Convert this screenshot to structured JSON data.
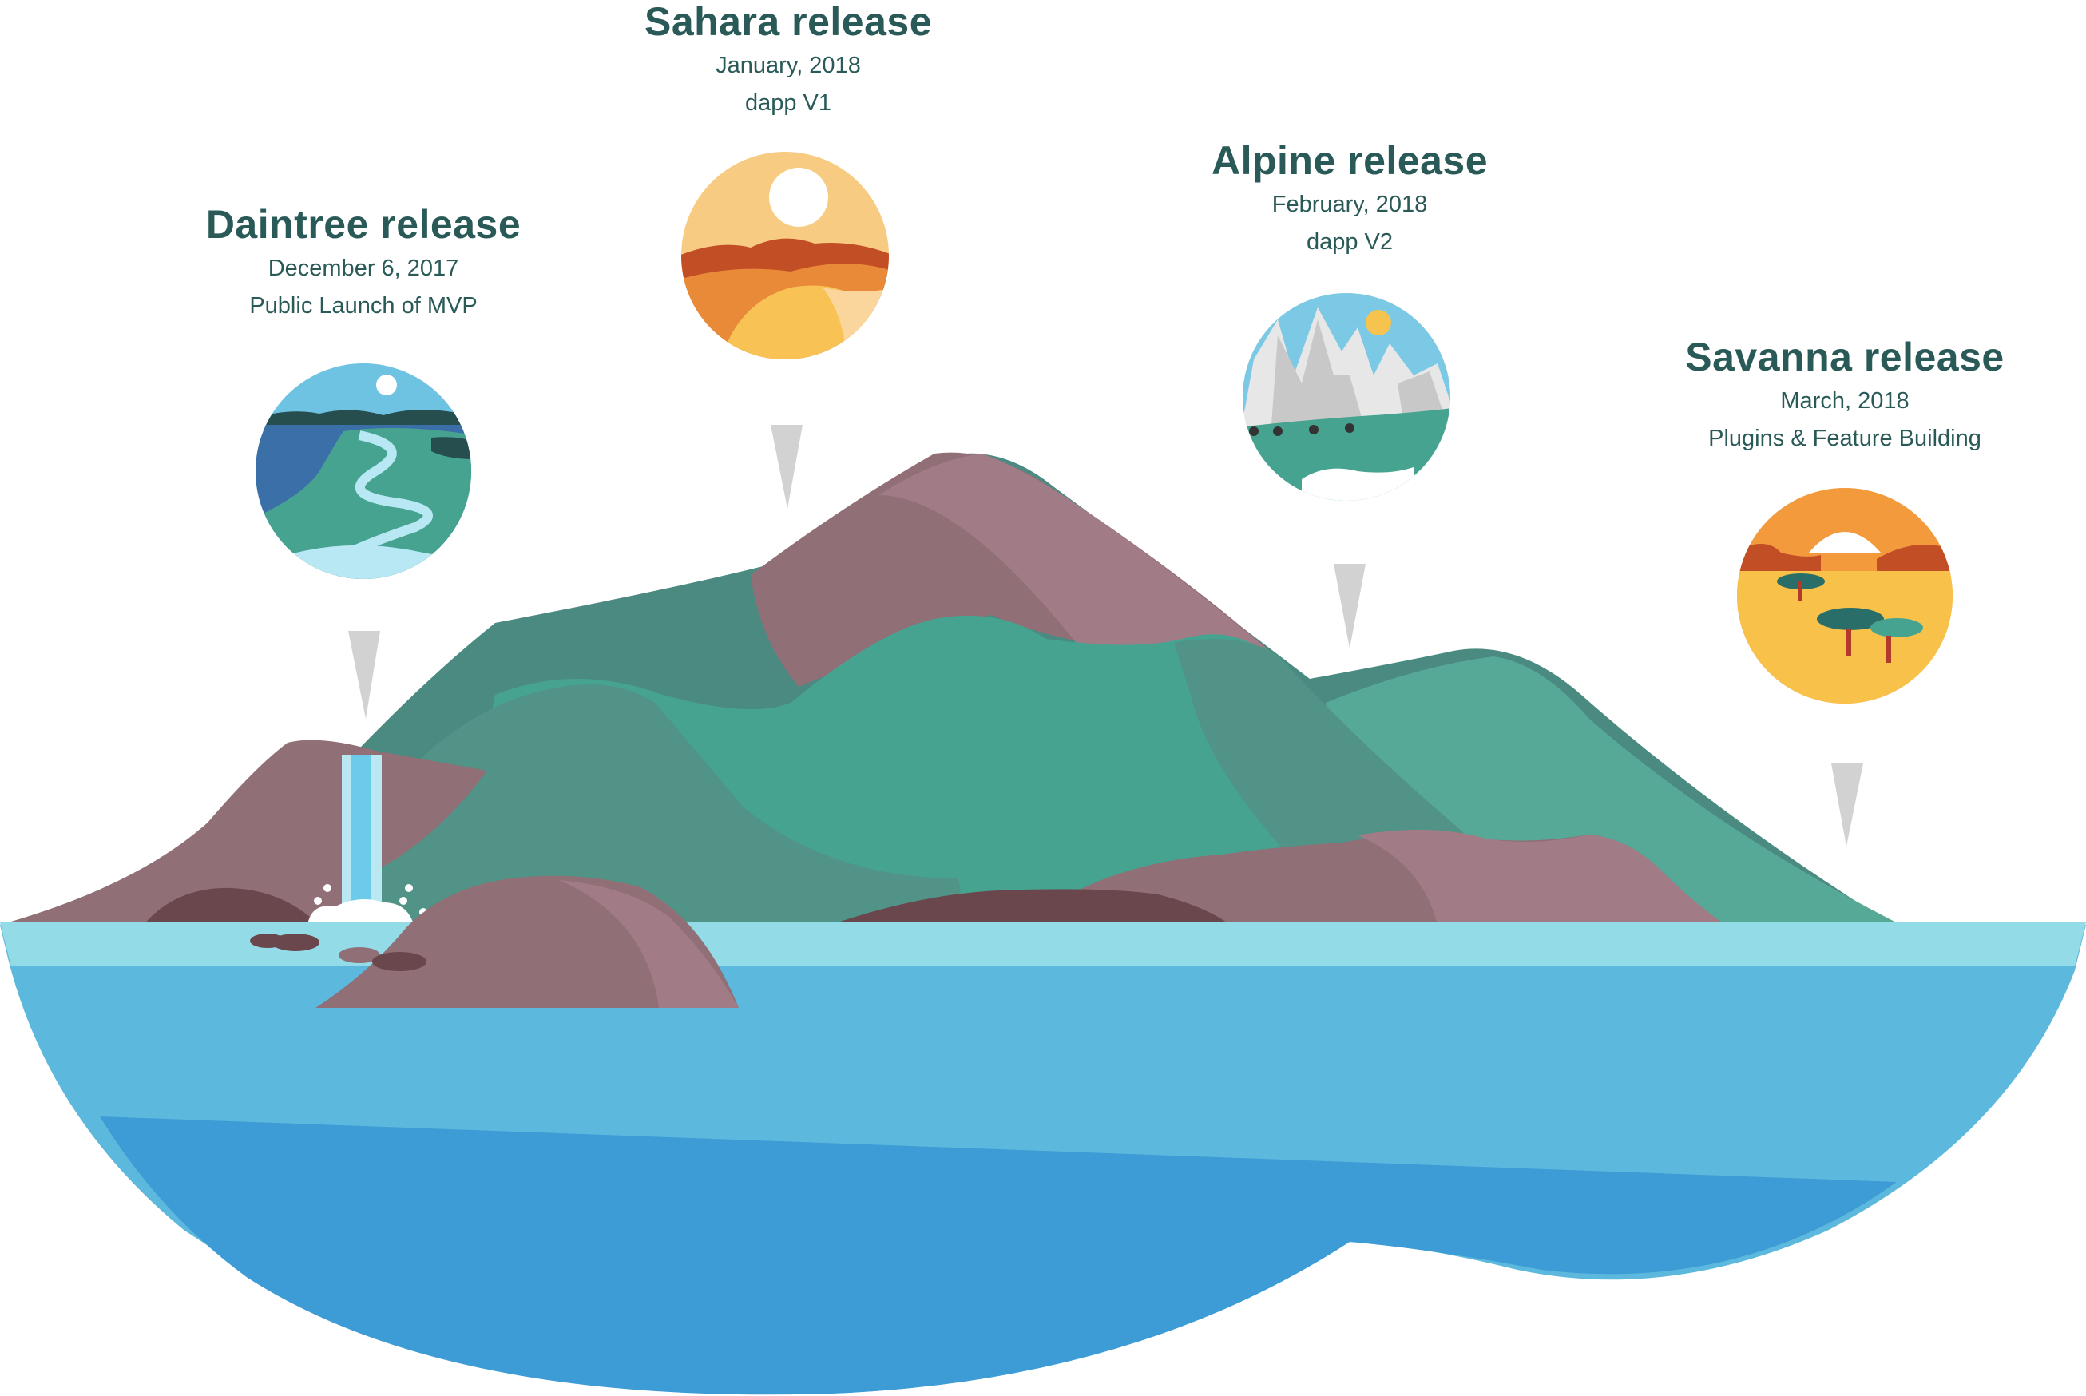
{
  "releases": [
    {
      "id": "daintree",
      "title": "Daintree release",
      "date": "December 6,  2017",
      "note": "Public Launch of MVP"
    },
    {
      "id": "sahara",
      "title": "Sahara release",
      "date": "January,  2018",
      "note": "dapp V1"
    },
    {
      "id": "alpine",
      "title": "Alpine release",
      "date": "February,  2018",
      "note": "dapp V2"
    },
    {
      "id": "savanna",
      "title": "Savanna release",
      "date": "March,  2018",
      "note": "Plugins & Feature Building"
    }
  ],
  "colors": {
    "text": "#2a5a58",
    "water_light": "#93dbe6",
    "water_mid": "#5cb8dc",
    "water_deep": "#3d9bd6",
    "mountain_mauve": "#916f76",
    "mountain_teal": "#46a390",
    "pointer_gray": "#d2d2d2"
  }
}
